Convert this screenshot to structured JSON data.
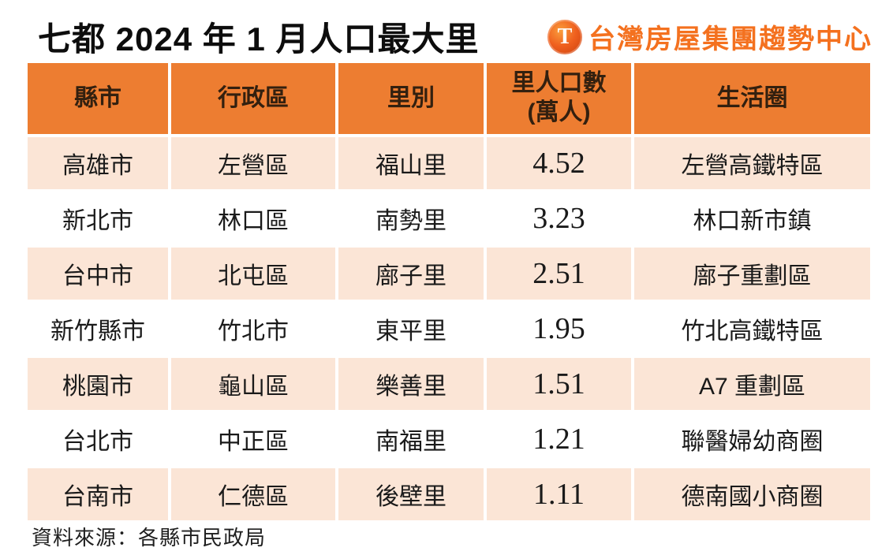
{
  "title": "七都 2024 年 1 月人口最大里",
  "logo": {
    "icon_letter": "T",
    "text": "台灣房屋集團趨勢中心"
  },
  "chart_data": {
    "type": "table",
    "title": "七都 2024 年 1 月人口最大里",
    "columns": [
      "縣市",
      "行政區",
      "里別",
      "里人口數(萬人)",
      "生活圈"
    ],
    "rows": [
      [
        "高雄市",
        "左營區",
        "福山里",
        "4.52",
        "左營高鐵特區"
      ],
      [
        "新北市",
        "林口區",
        "南勢里",
        "3.23",
        "林口新市鎮"
      ],
      [
        "台中市",
        "北屯區",
        "廍子里",
        "2.51",
        "廍子重劃區"
      ],
      [
        "新竹縣市",
        "竹北市",
        "東平里",
        "1.95",
        "竹北高鐵特區"
      ],
      [
        "桃園市",
        "龜山區",
        "樂善里",
        "1.51",
        "A7 重劃區"
      ],
      [
        "台北市",
        "中正區",
        "南福里",
        "1.21",
        "聯醫婦幼商圈"
      ],
      [
        "台南市",
        "仁德區",
        "後壁里",
        "1.11",
        "德南國小商圈"
      ]
    ]
  },
  "header_col4": {
    "line1": "里人口數",
    "line2": "(萬人)"
  },
  "footer": {
    "source_label": "資料來源：各縣市民政局"
  },
  "colors": {
    "header_bg": "#ED7D31",
    "header_text": "#33200F",
    "row_stripe_bg": "#FBE5D6",
    "row_plain_bg": "#FFFFFF",
    "body_text": "#1A1A1A",
    "logo_orange": "#F4711F"
  }
}
